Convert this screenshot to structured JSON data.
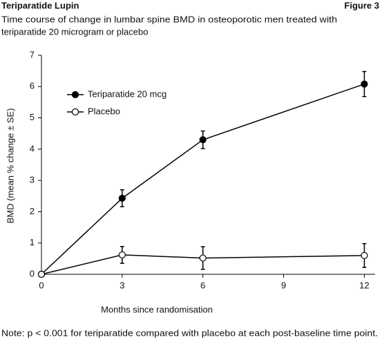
{
  "header": {
    "title": "Teriparatide Lupin",
    "figure": "Figure 3"
  },
  "chart_data": {
    "type": "line",
    "title": [
      "Time course of change in lumbar spine BMD in osteoporotic men treated with",
      "teriparatide 20 microgram or placebo"
    ],
    "xlabel": "Months since randomisation",
    "ylabel": "BMD (mean % change ± SE)",
    "x": [
      0,
      3,
      6,
      12
    ],
    "series": [
      {
        "name": "Teriparatide 20 mcg",
        "color": "#000000",
        "marker": "filled",
        "values": [
          0,
          2.43,
          4.3,
          6.08
        ],
        "errors": [
          null,
          0.27,
          0.28,
          0.4
        ]
      },
      {
        "name": "Placebo",
        "color": "#000000",
        "marker": "open",
        "values": [
          0,
          0.62,
          0.52,
          0.6
        ],
        "errors": [
          null,
          0.27,
          0.36,
          0.38
        ]
      }
    ],
    "xlim": [
      0,
      12.4
    ],
    "xticks": [
      0,
      3,
      6,
      9,
      12
    ],
    "ylim": [
      0,
      7
    ],
    "yticks": [
      0,
      1,
      2,
      3,
      4,
      5,
      6,
      7
    ],
    "legend": "upper left",
    "note": "Note: p < 0.001 for teriparatide compared with placebo at each post-baseline time point."
  }
}
